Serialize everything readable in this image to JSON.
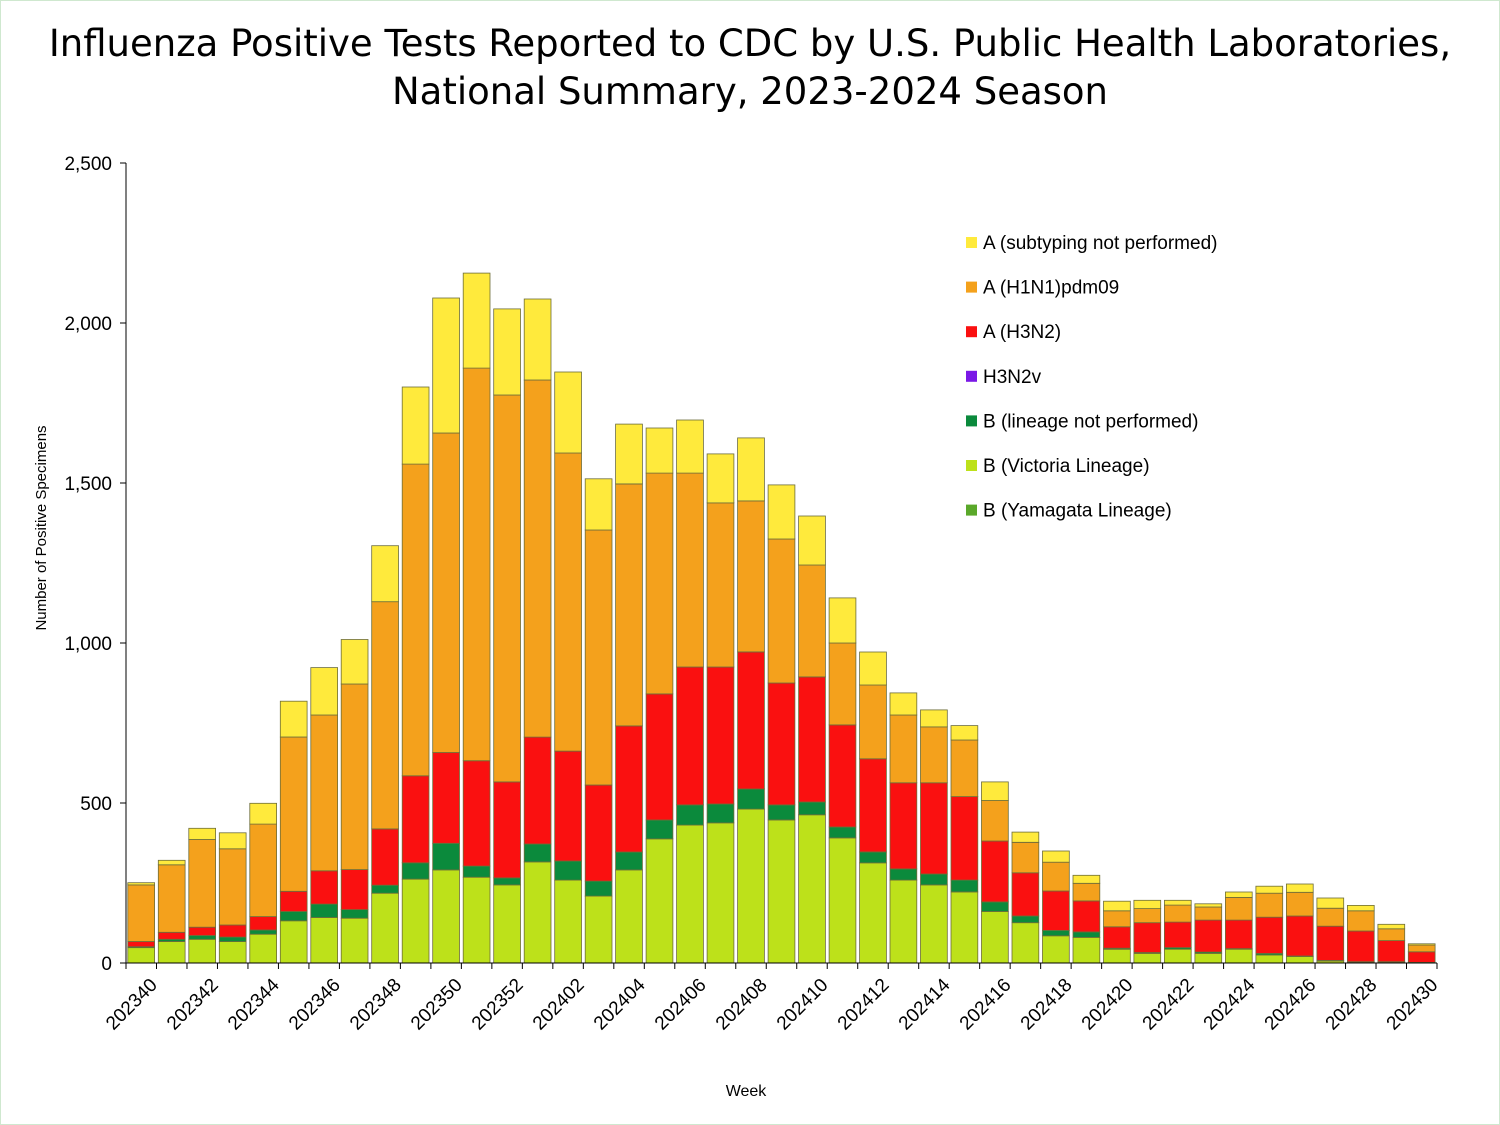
{
  "chart_data": {
    "type": "bar",
    "stacked": true,
    "title_line1": "Influenza Positive Tests Reported to CDC by U.S. Public Health Laboratories,",
    "title_line2": "National Summary, 2023-2024 Season",
    "xlabel": "Week",
    "ylabel": "Number of Positive Specimens",
    "ylim": [
      0,
      2500
    ],
    "yticks": [
      0,
      500,
      1000,
      1500,
      2000,
      2500
    ],
    "ytick_labels": [
      "0",
      "500",
      "1,000",
      "1,500",
      "2,000",
      "2,500"
    ],
    "grid": false,
    "legend_position": "right",
    "categories": [
      "202340",
      "202341",
      "202342",
      "202343",
      "202344",
      "202345",
      "202346",
      "202347",
      "202348",
      "202349",
      "202350",
      "202351",
      "202352",
      "202401",
      "202402",
      "202403",
      "202404",
      "202405",
      "202406",
      "202407",
      "202408",
      "202409",
      "202410",
      "202411",
      "202412",
      "202413",
      "202414",
      "202415",
      "202416",
      "202417",
      "202418",
      "202419",
      "202420",
      "202421",
      "202422",
      "202423",
      "202424",
      "202425",
      "202426",
      "202427",
      "202428",
      "202429",
      "202430"
    ],
    "xtick_labels": [
      "202340",
      "202342",
      "202344",
      "202346",
      "202348",
      "202350",
      "202352",
      "202402",
      "202404",
      "202406",
      "202408",
      "202410",
      "202412",
      "202414",
      "202416",
      "202418",
      "202420",
      "202422",
      "202424",
      "202426",
      "202428",
      "202430"
    ],
    "series": [
      {
        "name": "B (Yamagata Lineage)",
        "color": "#5aa82a",
        "values": [
          0,
          0,
          0,
          0,
          0,
          0,
          0,
          0,
          0,
          0,
          0,
          0,
          0,
          0,
          0,
          0,
          0,
          0,
          0,
          0,
          0,
          0,
          0,
          0,
          0,
          0,
          0,
          0,
          0,
          0,
          0,
          0,
          0,
          0,
          0,
          0,
          0,
          0,
          0,
          0,
          0,
          0,
          0
        ]
      },
      {
        "name": "B (Victoria Lineage)",
        "color": "#bde11a",
        "values": [
          48,
          67,
          74,
          67,
          90,
          132,
          142,
          140,
          218,
          262,
          291,
          268,
          244,
          316,
          259,
          209,
          291,
          388,
          431,
          438,
          481,
          447,
          463,
          391,
          313,
          259,
          244,
          222,
          161,
          126,
          85,
          80,
          43,
          30,
          43,
          30,
          43,
          25,
          20,
          6,
          2,
          3,
          0
        ]
      },
      {
        "name": "B (lineage not performed)",
        "color": "#0b8a3c",
        "values": [
          3,
          7,
          12,
          14,
          13,
          29,
          42,
          27,
          25,
          51,
          83,
          35,
          22,
          56,
          60,
          47,
          56,
          59,
          63,
          59,
          63,
          47,
          40,
          34,
          34,
          35,
          34,
          37,
          30,
          21,
          17,
          17,
          3,
          3,
          5,
          4,
          2,
          5,
          2,
          2,
          2,
          1,
          2
        ]
      },
      {
        "name": "H3N2v",
        "color": "#7a18e6",
        "values": [
          0,
          0,
          0,
          0,
          0,
          0,
          0,
          0,
          0,
          0,
          0,
          0,
          0,
          0,
          0,
          0,
          0,
          0,
          0,
          0,
          0,
          0,
          0,
          0,
          0,
          0,
          0,
          0,
          0,
          0,
          0,
          0,
          0,
          0,
          0,
          0,
          0,
          0,
          0,
          0,
          0,
          0,
          0
        ]
      },
      {
        "name": "A (H3N2)",
        "color": "#fa1010",
        "values": [
          16,
          22,
          26,
          38,
          42,
          63,
          104,
          125,
          176,
          272,
          284,
          329,
          300,
          334,
          343,
          300,
          394,
          394,
          431,
          428,
          428,
          381,
          391,
          319,
          291,
          269,
          285,
          261,
          190,
          135,
          123,
          97,
          67,
          93,
          80,
          100,
          89,
          113,
          125,
          107,
          96,
          66,
          33
        ]
      },
      {
        "name": "A (H1N1)pdm09",
        "color": "#f4a11c",
        "values": [
          177,
          211,
          274,
          238,
          289,
          482,
          487,
          580,
          710,
          974,
          998,
          1227,
          1209,
          1116,
          932,
          797,
          756,
          690,
          606,
          513,
          472,
          450,
          350,
          256,
          231,
          212,
          175,
          177,
          127,
          95,
          90,
          55,
          50,
          44,
          53,
          41,
          71,
          75,
          74,
          56,
          63,
          37,
          21
        ]
      },
      {
        "name": "A (subtyping not performed)",
        "color": "#ffea3c",
        "values": [
          7,
          14,
          35,
          50,
          65,
          112,
          148,
          139,
          175,
          241,
          422,
          297,
          269,
          253,
          253,
          160,
          187,
          141,
          166,
          153,
          197,
          169,
          153,
          141,
          103,
          69,
          53,
          45,
          58,
          32,
          35,
          25,
          30,
          26,
          15,
          10,
          17,
          22,
          26,
          32,
          17,
          14,
          4
        ]
      }
    ]
  }
}
